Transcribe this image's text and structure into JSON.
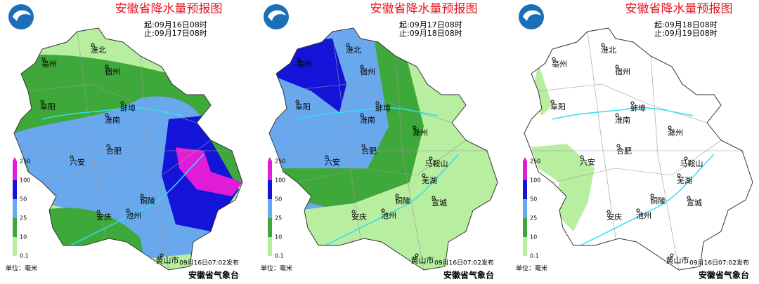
{
  "panels": [
    {
      "title": "安徽省降水量预报图",
      "start": "起:09月16日08时",
      "end": "止:09月17日08时",
      "cities": [
        "淮北",
        "亳州",
        "宿州",
        "阜阳",
        "蚌埠",
        "淮南",
        "合肥",
        "六安",
        "铜陵",
        "安庆",
        "池州",
        "黄山市"
      ],
      "legend_ticks": [
        "250",
        "100",
        "50",
        "25",
        "10",
        "0.1"
      ],
      "unit": "单位：毫米",
      "issued": "09月16日07:02发布",
      "org": "安徽省气象台"
    },
    {
      "title": "安徽省降水量预报图",
      "start": "起:09月17日08时",
      "end": "止:09月18日08时",
      "cities": [
        "淮北",
        "亳州",
        "宿州",
        "阜阳",
        "蚌埠",
        "淮南",
        "滁州",
        "合肥",
        "六安",
        "马鞍山",
        "芜湖",
        "铜陵",
        "宣城",
        "安庆",
        "池州",
        "黄山市"
      ],
      "legend_ticks": [
        "250",
        "100",
        "50",
        "25",
        "10",
        "0.1"
      ],
      "unit": "单位：毫米",
      "issued": "09月16日07:02发布",
      "org": "安徽省气象台"
    },
    {
      "title": "安徽省降水量预报图",
      "start": "起:09月18日08时",
      "end": "止:09月19日08时",
      "cities": [
        "淮北",
        "亳州",
        "宿州",
        "阜阳",
        "蚌埠",
        "淮南",
        "滁州",
        "合肥",
        "六安",
        "马鞍山",
        "芜湖",
        "铜陵",
        "宣城",
        "安庆",
        "池州",
        "黄山市"
      ],
      "legend_ticks": [
        "250",
        "100",
        "50",
        "25",
        "10",
        "0.1"
      ],
      "unit": "单位：毫米",
      "issued": "09月16日07:02发布",
      "org": "安徽省气象台"
    }
  ]
}
